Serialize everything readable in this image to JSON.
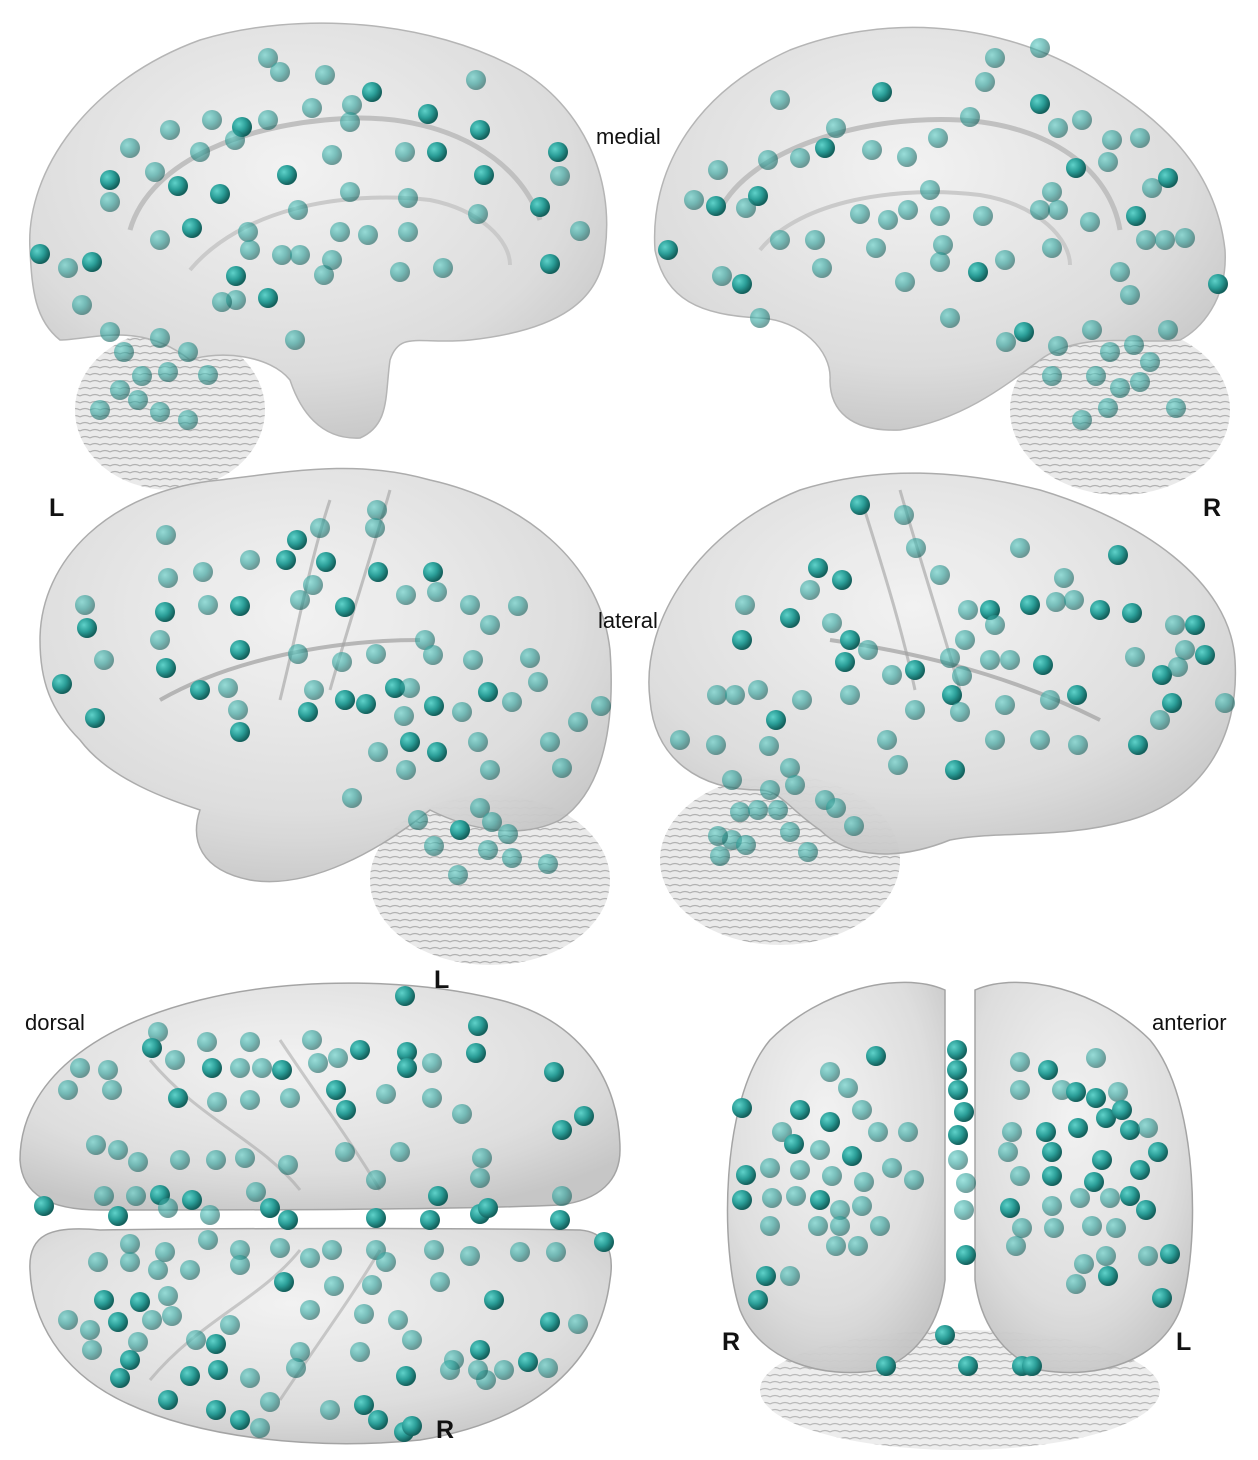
{
  "labels": {
    "medial": "medial",
    "lateral": "lateral",
    "dorsal": "dorsal",
    "anterior": "anterior",
    "left_top": "L",
    "right_top": "R",
    "dorsal_left": "L",
    "dorsal_right": "R",
    "anterior_right": "R",
    "anterior_left": "L"
  },
  "colors": {
    "node": "#2a9d97",
    "node_dark": "#15706b",
    "cortex": "#d8d8d8",
    "cortex_edge": "#9a9a9a",
    "cerebellum": "#c7c7c7"
  }
}
